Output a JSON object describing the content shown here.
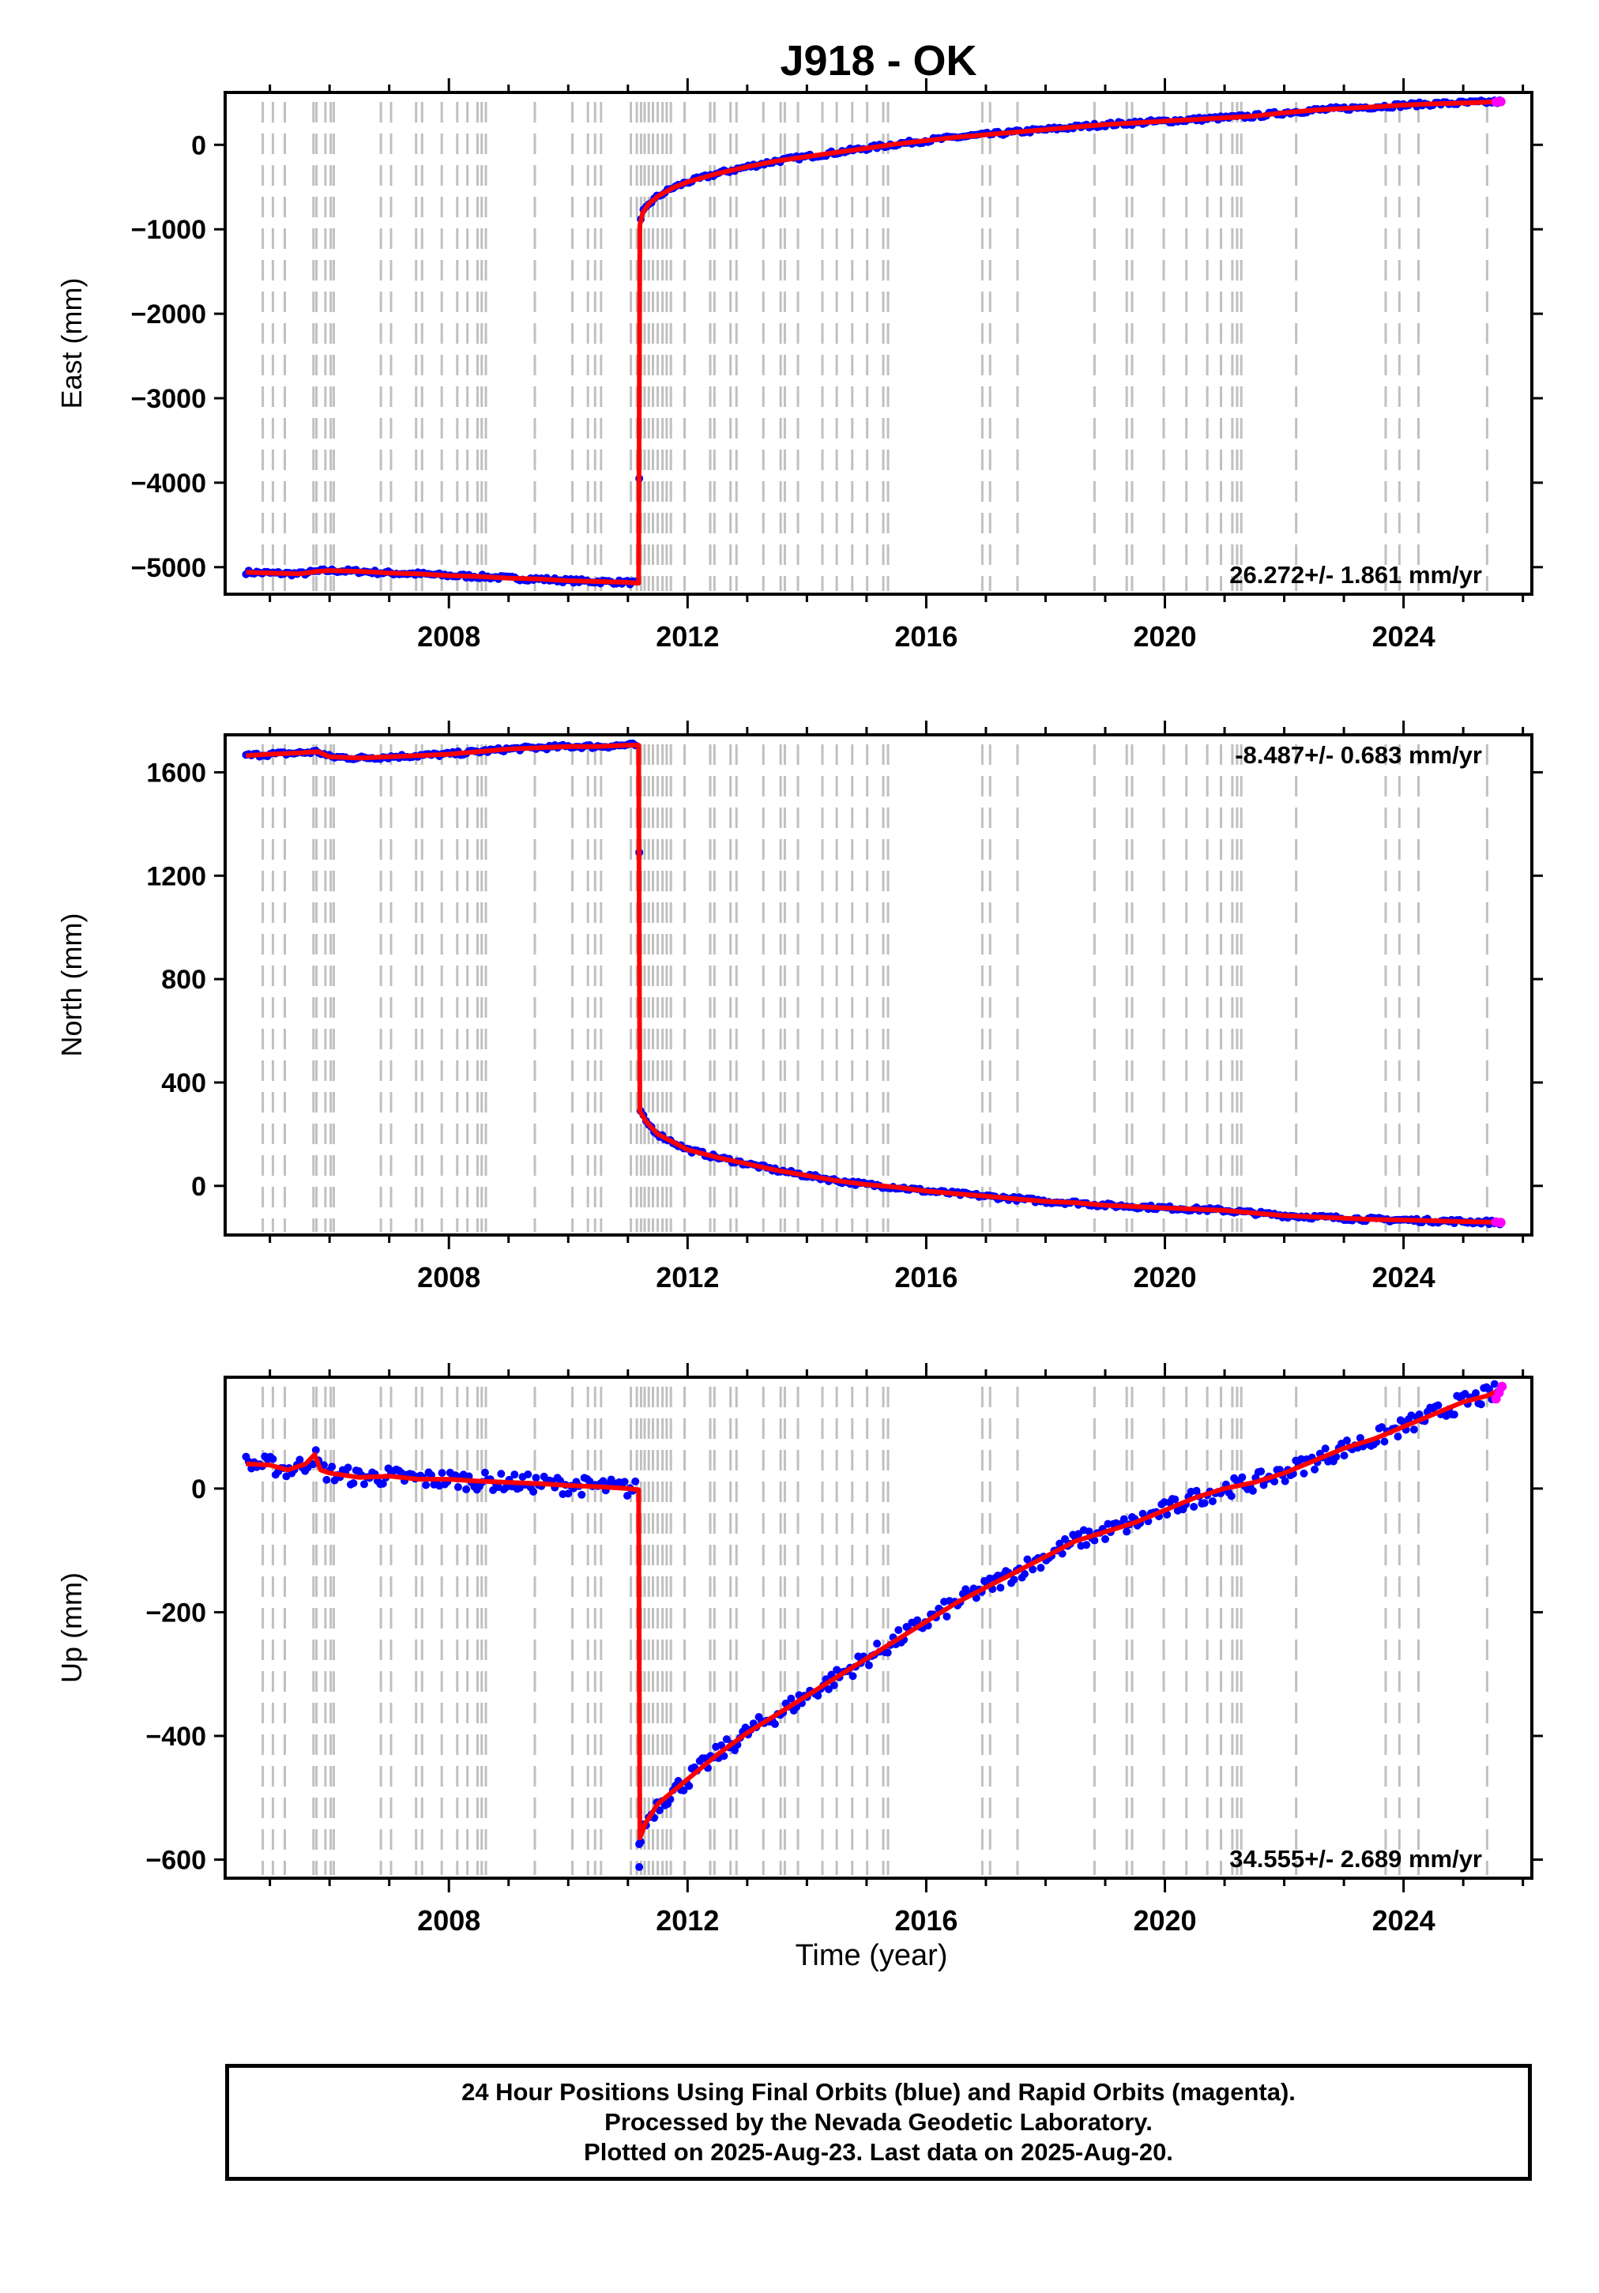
{
  "title": "J918 - OK",
  "xlabel": "Time (year)",
  "x_tick_labels": [
    "2008",
    "2012",
    "2016",
    "2020",
    "2024"
  ],
  "colors": {
    "final_orbits": "#0000ff",
    "rapid_orbits": "#ff00ff",
    "model_fit": "#ff0000",
    "event_lines": "#c0c0c0"
  },
  "caption": {
    "line1": "24 Hour Positions Using Final Orbits (blue) and Rapid Orbits (magenta).",
    "line2": "Processed by the Nevada Geodetic Laboratory.",
    "line3": "Plotted on 2025-Aug-23. Last data on 2025-Aug-20."
  },
  "event_lines_years": [
    2004.88,
    2005.05,
    2005.25,
    2005.73,
    2005.78,
    2005.93,
    2006.02,
    2006.07,
    2006.86,
    2007.03,
    2007.45,
    2007.55,
    2007.88,
    2008.14,
    2008.31,
    2008.48,
    2008.55,
    2008.62,
    2009.44,
    2010.07,
    2010.33,
    2010.45,
    2010.55,
    2011.05,
    2011.15,
    2011.22,
    2011.28,
    2011.35,
    2011.42,
    2011.5,
    2011.58,
    2011.65,
    2011.72,
    2011.95,
    2012.38,
    2012.45,
    2012.72,
    2012.82,
    2013.27,
    2013.56,
    2013.63,
    2013.85,
    2014.26,
    2014.5,
    2014.76,
    2015.01,
    2015.28,
    2015.36,
    2016.94,
    2017.07,
    2017.53,
    2018.82,
    2019.36,
    2019.45,
    2019.98,
    2020.36,
    2020.71,
    2020.94,
    2021.13,
    2021.21,
    2021.28,
    2022.2,
    2023.7,
    2023.93,
    2024.25,
    2025.4
  ],
  "chart_data": [
    {
      "type": "scatter",
      "ylabel": "East (mm)",
      "rate_label": "26.272+/- 1.861 mm/yr",
      "xlim": [
        2004.25,
        2026.15
      ],
      "ylim": [
        -5320,
        620
      ],
      "yticks": [
        0,
        -1000,
        -2000,
        -3000,
        -4000,
        -5000
      ],
      "ytick_labels": [
        "0",
        "−1000",
        "−2000",
        "−3000",
        "−4000",
        "−5000"
      ],
      "event_year": 2011.19,
      "x": [
        2004.6,
        2005.0,
        2005.5,
        2005.8,
        2006.0,
        2006.5,
        2007.0,
        2007.5,
        2008.0,
        2008.5,
        2009.0,
        2009.5,
        2010.0,
        2010.5,
        2011.0,
        2011.18,
        2011.2,
        2011.25,
        2011.35,
        2011.5,
        2011.75,
        2012.0,
        2012.5,
        2013.0,
        2013.5,
        2014.0,
        2014.5,
        2015.0,
        2015.5,
        2016.0,
        2016.5,
        2017.0,
        2017.5,
        2018.0,
        2018.5,
        2019.0,
        2019.5,
        2020.0,
        2020.5,
        2021.0,
        2021.5,
        2022.0,
        2022.5,
        2023.0,
        2023.5,
        2024.0,
        2024.5,
        2025.0,
        2025.4,
        2025.63
      ],
      "y": [
        -5060,
        -5070,
        -5080,
        -5050,
        -5040,
        -5050,
        -5070,
        -5080,
        -5100,
        -5110,
        -5130,
        -5140,
        -5160,
        -5170,
        -5180,
        -5190,
        -950,
        -800,
        -700,
        -610,
        -510,
        -440,
        -340,
        -260,
        -190,
        -140,
        -90,
        -40,
        10,
        50,
        90,
        120,
        150,
        180,
        210,
        240,
        260,
        280,
        300,
        320,
        340,
        380,
        410,
        430,
        450,
        470,
        485,
        495,
        505,
        510
      ],
      "outliers": [
        [
          2011.19,
          -3950
        ]
      ],
      "rapid_x": [
        2025.55,
        2025.63
      ],
      "rapid_y": [
        508,
        512
      ]
    },
    {
      "type": "scatter",
      "ylabel": "North (mm)",
      "rate_label": "-8.487+/- 0.683 mm/yr",
      "xlim": [
        2004.25,
        2026.15
      ],
      "ylim": [
        -190,
        1745
      ],
      "yticks": [
        1600,
        1200,
        800,
        400,
        0
      ],
      "ytick_labels": [
        "1600",
        "1200",
        "800",
        "400",
        "0"
      ],
      "event_year": 2011.19,
      "x": [
        2004.6,
        2005.0,
        2005.5,
        2005.8,
        2006.0,
        2006.5,
        2007.0,
        2007.5,
        2008.0,
        2008.5,
        2009.0,
        2009.5,
        2010.0,
        2010.5,
        2011.0,
        2011.18,
        2011.2,
        2011.3,
        2011.5,
        2011.75,
        2012.0,
        2012.5,
        2013.0,
        2013.5,
        2014.0,
        2014.5,
        2015.0,
        2015.5,
        2016.0,
        2016.5,
        2017.0,
        2017.5,
        2018.0,
        2018.5,
        2019.0,
        2019.5,
        2020.0,
        2020.5,
        2021.0,
        2021.5,
        2022.0,
        2022.5,
        2023.0,
        2023.5,
        2024.0,
        2024.5,
        2025.0,
        2025.4,
        2025.63
      ],
      "y": [
        1665,
        1670,
        1675,
        1680,
        1660,
        1655,
        1660,
        1665,
        1670,
        1680,
        1690,
        1695,
        1700,
        1700,
        1705,
        1705,
        290,
        250,
        200,
        170,
        140,
        110,
        85,
        60,
        40,
        20,
        5,
        -5,
        -20,
        -30,
        -40,
        -50,
        -60,
        -65,
        -75,
        -80,
        -85,
        -90,
        -95,
        -105,
        -115,
        -120,
        -125,
        -130,
        -132,
        -135,
        -138,
        -140,
        -142
      ],
      "outliers": [
        [
          2011.19,
          1290
        ]
      ],
      "rapid_x": [
        2025.55,
        2025.63
      ],
      "rapid_y": [
        -140,
        -142
      ]
    },
    {
      "type": "scatter",
      "ylabel": "Up (mm)",
      "rate_label": "34.555+/- 2.689 mm/yr",
      "xlim": [
        2004.25,
        2026.15
      ],
      "ylim": [
        -630,
        180
      ],
      "yticks": [
        0,
        -200,
        -400,
        -600
      ],
      "ytick_labels": [
        "0",
        "−200",
        "−400",
        "−600"
      ],
      "event_year": 2011.19,
      "x": [
        2004.6,
        2005.0,
        2005.3,
        2005.6,
        2005.75,
        2005.85,
        2006.0,
        2006.5,
        2007.0,
        2007.5,
        2008.0,
        2008.5,
        2009.0,
        2009.5,
        2010.0,
        2010.5,
        2011.0,
        2011.18,
        2011.2,
        2011.3,
        2011.5,
        2011.75,
        2012.0,
        2012.5,
        2013.0,
        2013.5,
        2014.0,
        2014.5,
        2015.0,
        2015.5,
        2016.0,
        2016.5,
        2017.0,
        2017.5,
        2018.0,
        2018.5,
        2019.0,
        2019.5,
        2020.0,
        2020.5,
        2021.0,
        2021.5,
        2022.0,
        2022.5,
        2023.0,
        2023.5,
        2024.0,
        2024.5,
        2025.0,
        2025.4,
        2025.63
      ],
      "y": [
        40,
        38,
        30,
        40,
        55,
        30,
        25,
        18,
        20,
        15,
        15,
        12,
        10,
        8,
        5,
        3,
        0,
        -2,
        -565,
        -540,
        -510,
        -490,
        -470,
        -430,
        -395,
        -365,
        -335,
        -305,
        -275,
        -245,
        -215,
        -185,
        -160,
        -135,
        -110,
        -85,
        -70,
        -55,
        -35,
        -15,
        0,
        10,
        25,
        45,
        65,
        80,
        100,
        120,
        140,
        150,
        160
      ],
      "outliers": [
        [
          2011.19,
          -612
        ],
        [
          2011.19,
          -575
        ]
      ],
      "rapid_x": [
        2025.55,
        2025.6,
        2025.65
      ],
      "rapid_y": [
        145,
        155,
        165
      ]
    }
  ]
}
